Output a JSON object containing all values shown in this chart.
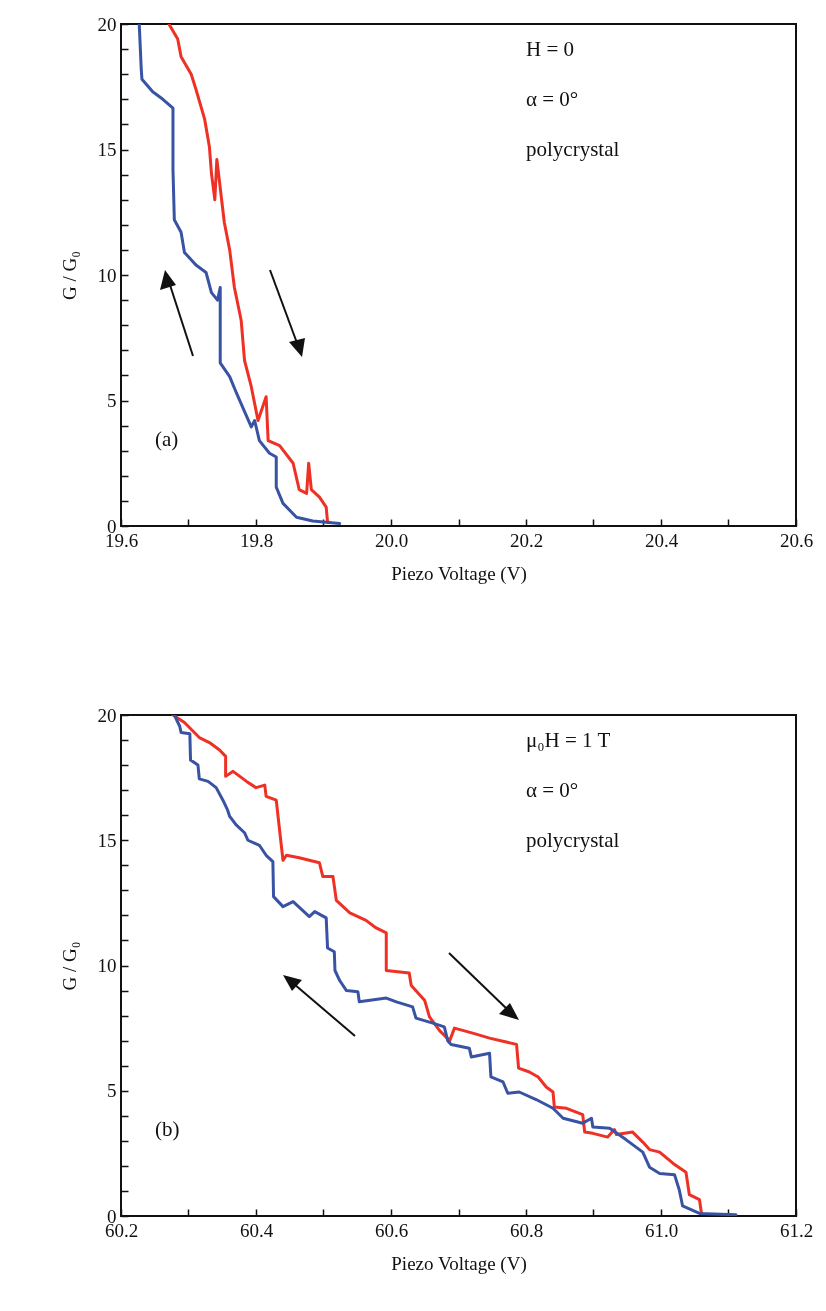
{
  "chart_data": [
    {
      "type": "line",
      "xlabel": "Piezo Voltage (V)",
      "ylabel": "G / G₀",
      "xlim": [
        19.6,
        20.6
      ],
      "xticks": [
        19.6,
        {
          "value": 19.7,
          "label": null
        },
        19.8,
        {
          "value": 19.9,
          "label": null
        },
        {
          "value": 20,
          "label": "20.0"
        },
        {
          "value": 20.1,
          "label": null
        },
        20.2,
        {
          "value": 20.3,
          "label": null
        },
        20.4,
        {
          "value": 20.5,
          "label": null
        },
        20.6
      ],
      "ylim": [
        0,
        20
      ],
      "yticks": [
        0,
        {
          "value": 1,
          "label": null
        },
        {
          "value": 2,
          "label": null
        },
        {
          "value": 3,
          "label": null
        },
        {
          "value": 4,
          "label": null
        },
        5,
        {
          "value": 6,
          "label": null
        },
        {
          "value": 7,
          "label": null
        },
        {
          "value": 8,
          "label": null
        },
        {
          "value": 9,
          "label": null
        },
        10,
        {
          "value": 11,
          "label": null
        },
        {
          "value": 12,
          "label": null
        },
        {
          "value": 13,
          "label": null
        },
        {
          "value": 14,
          "label": null
        },
        15,
        {
          "value": 16,
          "label": null
        },
        {
          "value": 17,
          "label": null
        },
        {
          "value": 18,
          "label": null
        },
        {
          "value": 19,
          "label": null
        },
        20
      ],
      "annotations": [
        "H = 0",
        "α = 0°",
        "polycrystal",
        "(a)"
      ],
      "series": [
        {
          "color": "#ee3124",
          "x": [
            19.671,
            19.684,
            19.689,
            19.704,
            19.711,
            19.724,
            19.731,
            19.734,
            19.739,
            19.742,
            19.746,
            19.753,
            19.761,
            19.768,
            19.778,
            19.783,
            19.793,
            19.803,
            19.815,
            19.818,
            19.835,
            19.855,
            19.864,
            19.875,
            19.878,
            19.882,
            19.894,
            19.904,
            19.906
          ],
          "values": [
            20,
            19.4,
            18.7,
            18.0,
            17.4,
            16.2,
            15.1,
            14.05,
            13.0,
            14.6,
            13.7,
            12.1,
            11.0,
            9.5,
            8.2,
            6.6,
            5.55,
            4.2,
            5.15,
            3.4,
            3.2,
            2.5,
            1.45,
            1.3,
            2.5,
            1.45,
            1.15,
            0.75,
            0.15
          ]
        },
        {
          "color": "#3953a4",
          "x": [
            19.627,
            19.63,
            19.631,
            19.647,
            19.662,
            19.677,
            19.677,
            19.679,
            19.689,
            19.694,
            19.711,
            19.726,
            19.734,
            19.743,
            19.747,
            19.747,
            19.761,
            19.771,
            19.78,
            19.793,
            19.798,
            19.805,
            19.82,
            19.83,
            19.83,
            19.84,
            19.86,
            19.884,
            19.924
          ],
          "values": [
            20,
            18.2,
            17.8,
            17.3,
            17.0,
            16.65,
            14.2,
            12.2,
            11.7,
            10.9,
            10.4,
            10.1,
            9.3,
            9.0,
            9.5,
            6.5,
            5.95,
            5.3,
            4.75,
            3.95,
            4.2,
            3.4,
            2.9,
            2.75,
            1.55,
            0.9,
            0.35,
            0.2,
            0.1
          ]
        }
      ]
    },
    {
      "type": "line",
      "xlabel": "Piezo Voltage (V)",
      "ylabel": "G / G₀",
      "xlim": [
        60.2,
        61.2
      ],
      "xticks": [
        60.2,
        {
          "value": 60.3,
          "label": null
        },
        60.4,
        {
          "value": 60.5,
          "label": null
        },
        60.6,
        {
          "value": 60.7,
          "label": null
        },
        60.8,
        {
          "value": 60.9,
          "label": null
        },
        {
          "value": 61,
          "label": "61.0"
        },
        {
          "value": 61.1,
          "label": null
        },
        61.2
      ],
      "ylim": [
        0,
        20
      ],
      "yticks": [
        0,
        {
          "value": 1,
          "label": null
        },
        {
          "value": 2,
          "label": null
        },
        {
          "value": 3,
          "label": null
        },
        {
          "value": 4,
          "label": null
        },
        5,
        {
          "value": 6,
          "label": null
        },
        {
          "value": 7,
          "label": null
        },
        {
          "value": 8,
          "label": null
        },
        {
          "value": 9,
          "label": null
        },
        10,
        {
          "value": 11,
          "label": null
        },
        {
          "value": 12,
          "label": null
        },
        {
          "value": 13,
          "label": null
        },
        {
          "value": 14,
          "label": null
        },
        15,
        {
          "value": 16,
          "label": null
        },
        {
          "value": 17,
          "label": null
        },
        {
          "value": 18,
          "label": null
        },
        {
          "value": 19,
          "label": null
        },
        20
      ],
      "annotations": [
        "μ₀H = 1 T",
        "α = 0°",
        "polycrystal",
        "(b)"
      ],
      "series": [
        {
          "color": "#ee3124",
          "x": [
            60.277,
            60.294,
            60.316,
            60.331,
            60.346,
            60.355,
            60.355,
            60.366,
            60.386,
            60.4,
            60.413,
            60.415,
            60.43,
            60.436,
            60.44,
            60.445,
            60.464,
            60.494,
            60.499,
            60.514,
            60.519,
            60.539,
            60.563,
            60.578,
            60.593,
            60.593,
            60.627,
            60.63,
            60.65,
            60.657,
            60.672,
            60.687,
            60.694,
            60.721,
            60.746,
            60.786,
            60.789,
            60.805,
            60.818,
            60.83,
            60.84,
            60.842,
            60.86,
            60.884,
            60.887,
            60.899,
            60.921,
            60.931,
            60.934,
            60.958,
            60.973,
            60.983,
            60.998,
            61.018,
            61.037,
            61.042,
            61.057,
            61.06
          ],
          "values": [
            20,
            19.7,
            19.1,
            18.9,
            18.6,
            18.35,
            17.55,
            17.75,
            17.35,
            17.1,
            17.2,
            16.75,
            16.6,
            15.15,
            14.2,
            14.4,
            14.3,
            14.1,
            13.55,
            13.55,
            12.6,
            12.1,
            11.8,
            11.5,
            11.3,
            9.8,
            9.7,
            9.2,
            8.6,
            7.95,
            7.4,
            7.0,
            7.5,
            7.3,
            7.1,
            6.85,
            5.9,
            5.75,
            5.55,
            5.15,
            4.95,
            4.35,
            4.3,
            4.05,
            3.35,
            3.3,
            3.15,
            3.45,
            3.25,
            3.35,
            2.95,
            2.65,
            2.55,
            2.1,
            1.75,
            0.85,
            0.65,
            0.1
          ]
        },
        {
          "color": "#3953a4",
          "x": [
            60.279,
            60.287,
            60.289,
            60.302,
            60.303,
            60.314,
            60.316,
            60.329,
            60.341,
            60.351,
            60.358,
            60.361,
            60.371,
            60.383,
            60.388,
            60.405,
            60.415,
            60.425,
            60.426,
            60.44,
            60.455,
            60.479,
            60.487,
            60.504,
            60.506,
            60.516,
            60.517,
            60.524,
            60.534,
            60.551,
            60.553,
            60.593,
            60.608,
            60.632,
            60.637,
            60.662,
            60.679,
            60.684,
            60.689,
            60.716,
            60.719,
            60.746,
            60.748,
            60.766,
            60.773,
            60.79,
            60.815,
            60.84,
            60.855,
            60.884,
            60.897,
            60.899,
            60.924,
            60.948,
            60.973,
            60.983,
            60.998,
            61.02,
            61.027,
            61.032,
            61.057,
            61.111
          ],
          "values": [
            20,
            19.55,
            19.3,
            19.25,
            18.2,
            18.0,
            17.45,
            17.35,
            17.1,
            16.6,
            16.2,
            15.95,
            15.6,
            15.3,
            15.0,
            14.8,
            14.4,
            14.15,
            12.75,
            12.35,
            12.55,
            11.95,
            12.15,
            11.9,
            10.7,
            10.55,
            9.8,
            9.4,
            9.0,
            8.95,
            8.55,
            8.7,
            8.55,
            8.35,
            7.9,
            7.7,
            7.55,
            7.0,
            6.85,
            6.7,
            6.35,
            6.5,
            5.55,
            5.35,
            4.9,
            4.95,
            4.65,
            4.3,
            3.9,
            3.7,
            3.9,
            3.55,
            3.5,
            3.05,
            2.55,
            1.95,
            1.7,
            1.65,
            1.05,
            0.4,
            0.1,
            0.05
          ]
        }
      ]
    }
  ]
}
